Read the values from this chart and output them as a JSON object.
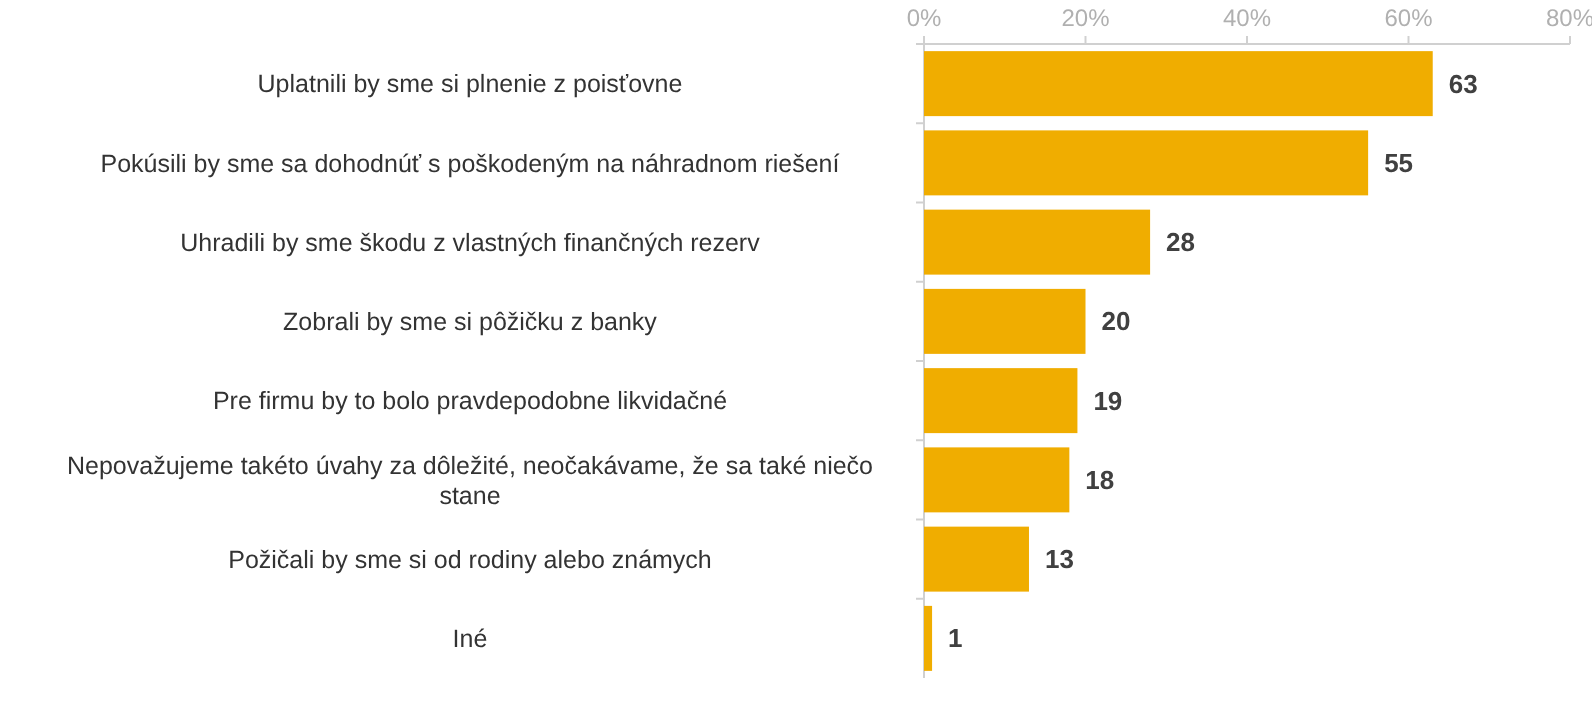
{
  "chart_data": {
    "type": "bar",
    "orientation": "horizontal",
    "categories": [
      "Uplatnili by sme si plnenie z poisťovne",
      "Pokúsili by sme sa dohodnúť s poškodeným na náhradnom riešení",
      "Uhradili by sme škodu z vlastných finančných rezerv",
      "Zobrali by sme si pôžičku z banky",
      "Pre firmu by to bolo pravdepodobne likvidačné",
      "Nepovažujeme takéto úvahy za dôležité, neočakávame, že sa také niečo stane",
      "Požičali by sme si od rodiny alebo známych",
      "Iné"
    ],
    "values": [
      63,
      55,
      28,
      20,
      19,
      18,
      13,
      1
    ],
    "color": "#f0ad00",
    "xlim": [
      0,
      80
    ],
    "xticks": [
      {
        "value": 0,
        "label": "0%"
      },
      {
        "value": 20,
        "label": "20%"
      },
      {
        "value": 40,
        "label": "40%"
      },
      {
        "value": 60,
        "label": "60%"
      },
      {
        "value": 80,
        "label": "80%"
      }
    ],
    "data_labels": true,
    "grid": false
  }
}
